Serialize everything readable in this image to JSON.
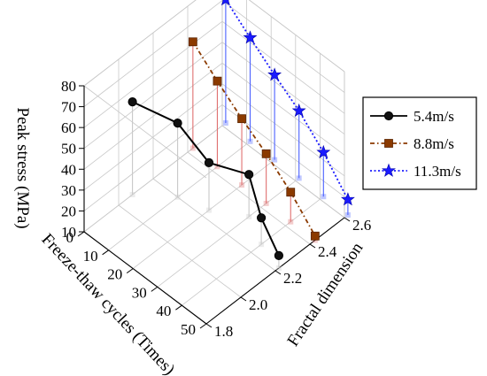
{
  "chart_data": {
    "type": "scatter3d",
    "title": "",
    "xlabel": "Freeze-thaw cycles (Times)",
    "ylabel": "Fractal dimension",
    "zlabel": "Peak stress (MPa)",
    "xlim": [
      0,
      50
    ],
    "ylim": [
      1.8,
      2.6
    ],
    "zlim": [
      10,
      80
    ],
    "xticks": [
      "0",
      "10",
      "20",
      "30",
      "40",
      "50"
    ],
    "yticks": [
      "1.8",
      "2.0",
      "2.2",
      "2.4",
      "2.6"
    ],
    "zticks": [
      "10",
      "20",
      "30",
      "40",
      "50",
      "60",
      "70",
      "80"
    ],
    "grid": true,
    "drop_lines": true,
    "legend_position": "right",
    "series": [
      {
        "name": "5.4m/s",
        "color": "#000000",
        "marker": "circle",
        "line_style": "solid",
        "drop_color": "#c8c8c8",
        "points": [
          {
            "x": 0,
            "y": 2.08,
            "z": 54.5
          },
          {
            "x": 10,
            "y": 2.2,
            "z": 45.5
          },
          {
            "x": 20,
            "y": 2.24,
            "z": 32.8
          },
          {
            "x": 30,
            "y": 2.33,
            "z": 30.2
          },
          {
            "x": 40,
            "y": 2.26,
            "z": 22.7
          },
          {
            "x": 50,
            "y": 2.22,
            "z": 16.0
          }
        ]
      },
      {
        "name": "8.8m/s",
        "color": "#8b3a00",
        "marker": "square",
        "line_style": "dash-dot",
        "drop_color": "#e07070",
        "points": [
          {
            "x": 0,
            "y": 2.43,
            "z": 61.0
          },
          {
            "x": 10,
            "y": 2.43,
            "z": 51.0
          },
          {
            "x": 20,
            "y": 2.43,
            "z": 41.8
          },
          {
            "x": 30,
            "y": 2.43,
            "z": 33.8
          },
          {
            "x": 40,
            "y": 2.43,
            "z": 24.2
          },
          {
            "x": 50,
            "y": 2.43,
            "z": 12.0
          }
        ]
      },
      {
        "name": "11.3m/s",
        "color": "#1a1aff",
        "marker": "star",
        "line_style": "dotted",
        "drop_color": "#4a60ff",
        "points": [
          {
            "x": 0,
            "y": 2.62,
            "z": 69.2
          },
          {
            "x": 10,
            "y": 2.62,
            "z": 59.7
          },
          {
            "x": 20,
            "y": 2.62,
            "z": 50.7
          },
          {
            "x": 30,
            "y": 2.62,
            "z": 42.3
          },
          {
            "x": 40,
            "y": 2.62,
            "z": 31.2
          },
          {
            "x": 50,
            "y": 2.62,
            "z": 17.4
          }
        ]
      }
    ]
  }
}
